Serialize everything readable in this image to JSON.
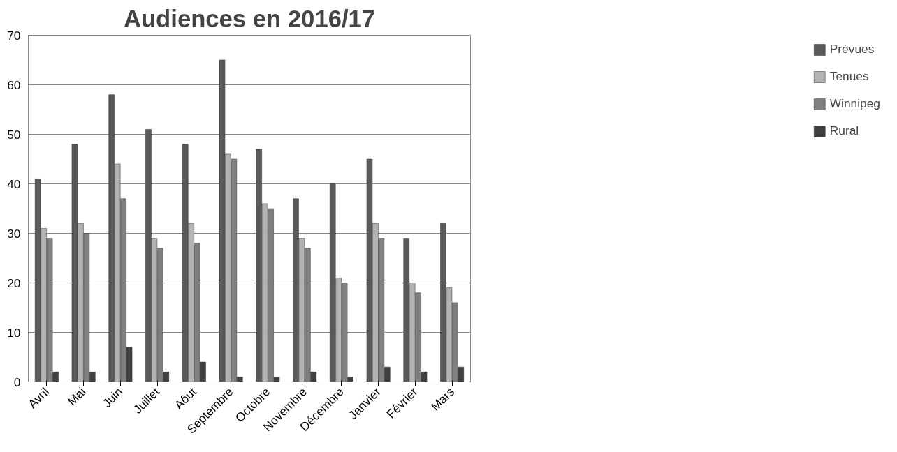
{
  "chart_data": {
    "type": "bar",
    "title": "Audiences en 2016/17",
    "categories": [
      "Avril",
      "Mai",
      "Juin",
      "Juillet",
      "Aôut",
      "Septembre",
      "Octobre",
      "Novembre",
      "Décembre",
      "Janvier",
      "Février",
      "Mars"
    ],
    "series": [
      {
        "name": "Prévues",
        "color": "#595959",
        "values": [
          41,
          48,
          58,
          51,
          48,
          65,
          47,
          37,
          40,
          45,
          29,
          32
        ]
      },
      {
        "name": "Tenues",
        "color": "#b3b3b3",
        "values": [
          31,
          32,
          44,
          29,
          32,
          46,
          36,
          29,
          21,
          32,
          20,
          19
        ]
      },
      {
        "name": "Winnipeg",
        "color": "#808080",
        "values": [
          29,
          30,
          37,
          27,
          28,
          45,
          35,
          27,
          20,
          29,
          18,
          16
        ]
      },
      {
        "name": "Rural",
        "color": "#404040",
        "values": [
          2,
          2,
          7,
          2,
          4,
          1,
          1,
          2,
          1,
          3,
          2,
          3
        ]
      }
    ],
    "ylim": [
      0,
      70
    ],
    "yticks": [
      0,
      10,
      20,
      30,
      40,
      50,
      60,
      70
    ],
    "grid": "y",
    "legend": "right"
  }
}
